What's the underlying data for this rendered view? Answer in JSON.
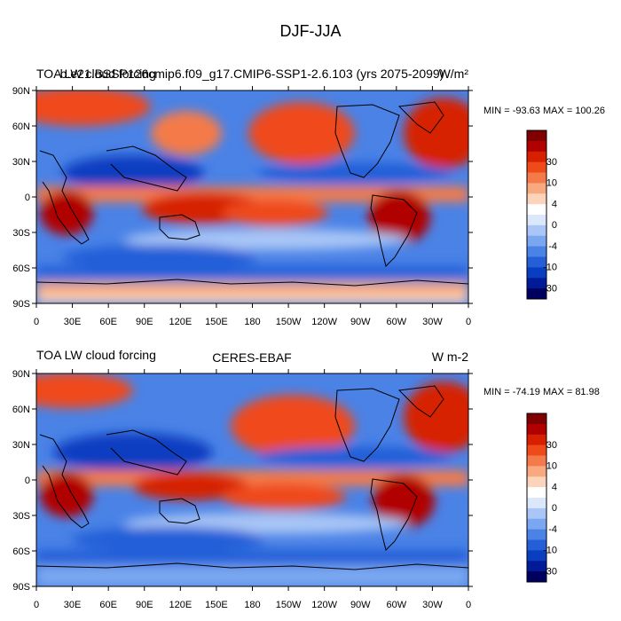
{
  "page_title": "DJF-JJA",
  "chart_data": [
    {
      "type": "heatmap",
      "title_left": "TOA LW cloud forcing",
      "title_center": "b.e21.BSSP126cmip6.f09_g17.CMIP6-SSP1-2.6.103 (yrs 2075-2099)",
      "units": "W/m²",
      "min_max_label": "MIN = -93.63 MAX = 100.26",
      "x_ticks": [
        "0",
        "30E",
        "60E",
        "90E",
        "120E",
        "150E",
        "180",
        "150W",
        "120W",
        "90W",
        "60W",
        "30W",
        "0"
      ],
      "y_ticks": [
        "90N",
        "60N",
        "30N",
        "0",
        "30S",
        "60S",
        "90S"
      ],
      "colorbar_labels": [
        "30",
        "10",
        "4",
        "0",
        "-4",
        "-10",
        "-30"
      ]
    },
    {
      "type": "heatmap",
      "title_left": "TOA LW cloud forcing",
      "title_center": "CERES-EBAF",
      "units": "W m-2",
      "min_max_label": "MIN = -74.19 MAX =  81.98",
      "x_ticks": [
        "0",
        "30E",
        "60E",
        "90E",
        "120E",
        "150E",
        "180",
        "150W",
        "120W",
        "90W",
        "60W",
        "30W",
        "0"
      ],
      "y_ticks": [
        "90N",
        "60N",
        "30N",
        "0",
        "30S",
        "60S",
        "90S"
      ],
      "colorbar_labels": [
        "30",
        "10",
        "4",
        "0",
        "-4",
        "-10",
        "-30"
      ]
    }
  ],
  "colors": {
    "palette": [
      "#7f0000",
      "#b00000",
      "#d62000",
      "#ef4a1a",
      "#f47a4a",
      "#f9a97f",
      "#fcd3bb",
      "#ffffff",
      "#dbe8fb",
      "#a9c6f6",
      "#7aa7f0",
      "#4a82e6",
      "#245fd8",
      "#0a3ec1",
      "#001a98",
      "#00005f"
    ]
  }
}
